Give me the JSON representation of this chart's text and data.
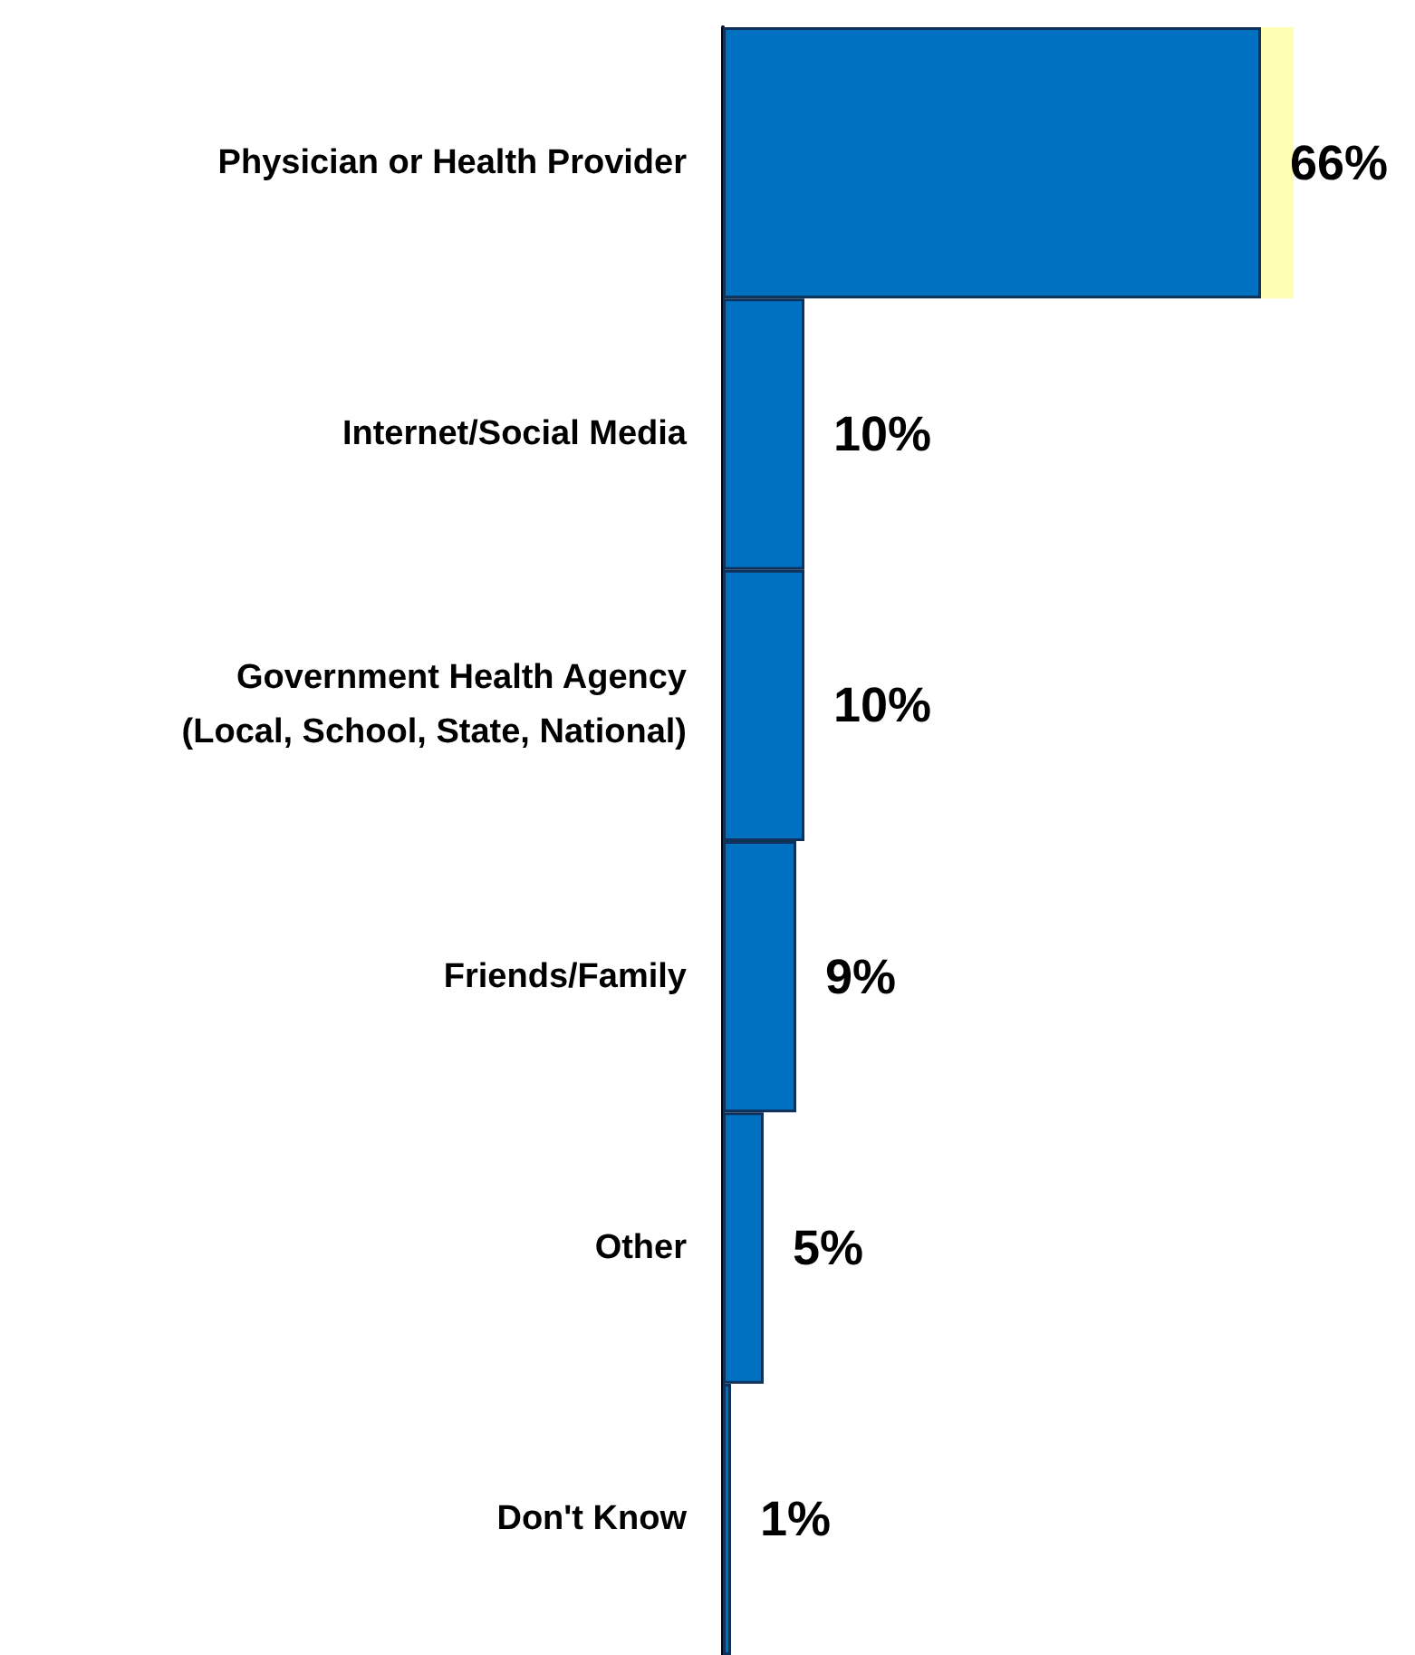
{
  "chart_data": {
    "type": "bar",
    "orientation": "horizontal",
    "categories": [
      "Physician or Health Provider",
      "Internet/Social Media",
      "Government Health Agency\n(Local, School, State, National)",
      "Friends/Family",
      "Other",
      "Don't Know"
    ],
    "values": [
      66,
      10,
      10,
      9,
      5,
      1
    ],
    "value_labels": [
      "66%",
      "10%",
      "10%",
      "9%",
      "5%",
      "1%"
    ],
    "color": "#0070c0",
    "tick_labels": "y",
    "grid": false,
    "bands": [
      {
        "axis": "y",
        "from": "Physician or Health Provider",
        "to": "Physician or Health Provider",
        "color": "#ffffb3"
      }
    ]
  }
}
